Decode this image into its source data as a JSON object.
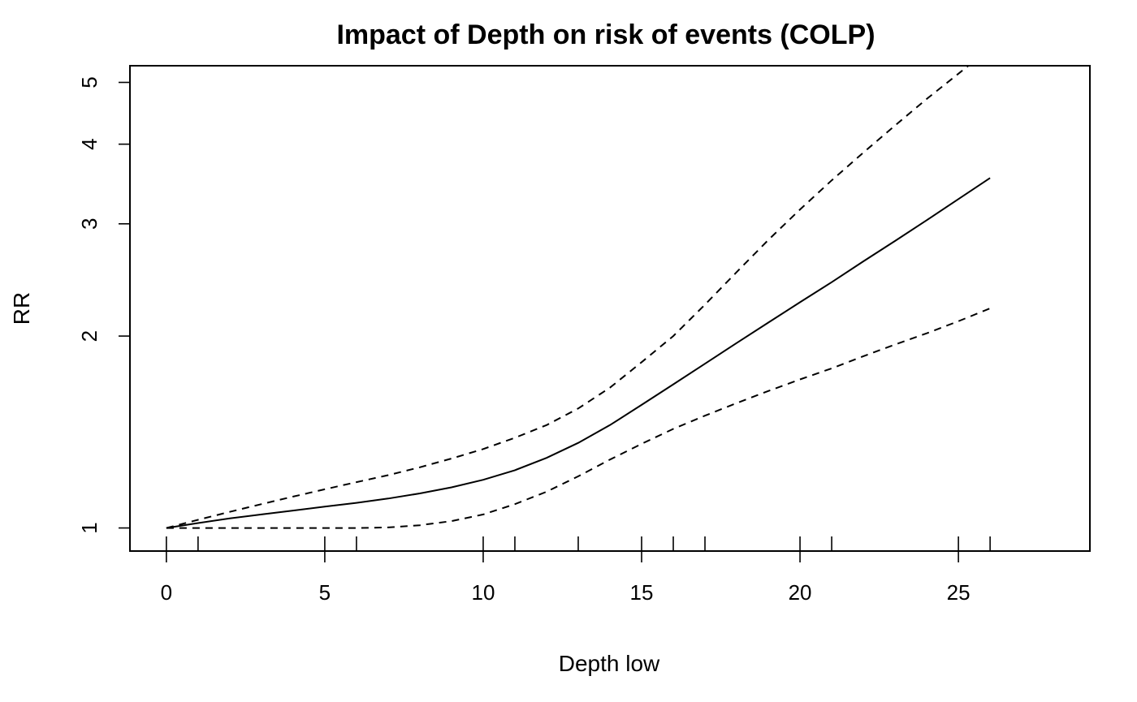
{
  "chart_data": {
    "type": "line",
    "title": "Impact of Depth on risk of events (COLP)",
    "xlabel": "Depth low",
    "ylabel": "RR",
    "xlim": [
      -1.15,
      29.15
    ],
    "ylim": [
      0.92,
      5.31
    ],
    "y_scale": "log",
    "x_ticks": [
      0,
      5,
      10,
      15,
      20,
      25
    ],
    "y_ticks": [
      1,
      2,
      3,
      4,
      5
    ],
    "rug": [
      0,
      1,
      5,
      6,
      10,
      11,
      13,
      15,
      16,
      17,
      20,
      21,
      25,
      26
    ],
    "x": [
      0,
      1,
      2,
      3,
      4,
      5,
      6,
      7,
      8,
      9,
      10,
      11,
      12,
      13,
      14,
      15,
      16,
      17,
      18,
      19,
      20,
      21,
      22,
      23,
      24,
      25,
      26
    ],
    "series": [
      {
        "name": "RR",
        "style": "solid",
        "values": [
          1.0,
          1.018,
          1.035,
          1.05,
          1.065,
          1.08,
          1.095,
          1.112,
          1.133,
          1.158,
          1.19,
          1.232,
          1.288,
          1.36,
          1.45,
          1.56,
          1.68,
          1.81,
          1.95,
          2.1,
          2.26,
          2.43,
          2.62,
          2.82,
          3.04,
          3.28,
          3.54
        ]
      },
      {
        "name": "Upper 95% CI",
        "style": "dashed",
        "values": [
          1.0,
          1.03,
          1.06,
          1.09,
          1.12,
          1.15,
          1.18,
          1.21,
          1.245,
          1.285,
          1.33,
          1.385,
          1.45,
          1.54,
          1.66,
          1.82,
          2.0,
          2.24,
          2.52,
          2.83,
          3.16,
          3.51,
          3.88,
          4.28,
          4.71,
          5.16,
          5.65
        ]
      },
      {
        "name": "Lower 95% CI",
        "style": "dashed",
        "values": [
          1.0,
          1.0,
          1.0,
          1.0,
          1.0,
          1.0,
          1.0,
          1.002,
          1.01,
          1.025,
          1.05,
          1.09,
          1.14,
          1.205,
          1.28,
          1.355,
          1.43,
          1.5,
          1.57,
          1.64,
          1.71,
          1.78,
          1.86,
          1.94,
          2.02,
          2.11,
          2.21
        ]
      }
    ]
  }
}
